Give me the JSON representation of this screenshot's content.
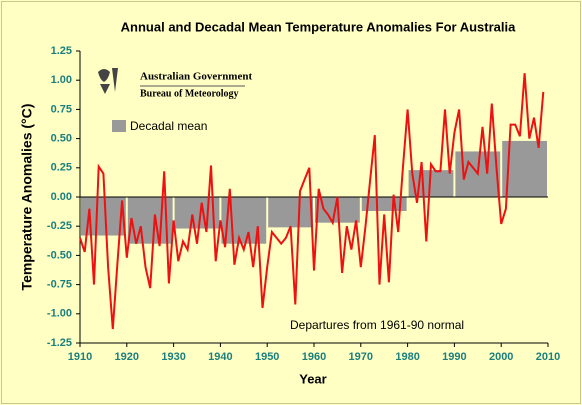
{
  "chart_data": {
    "type": "line",
    "title": "Annual and Decadal Mean Temperature Anomalies For Australia",
    "xlabel": "Year",
    "ylabel": "Temperature Anomalies (°C)",
    "annotation": "Departures from 1961-90 normal",
    "logo_text": [
      "Australian Government",
      "Bureau of Meteorology"
    ],
    "xlim": [
      1910,
      2010
    ],
    "xticks": [
      1910,
      1920,
      1930,
      1940,
      1950,
      1960,
      1970,
      1980,
      1990,
      2000,
      2010
    ],
    "ylim": [
      -1.25,
      1.25
    ],
    "yticks": [
      -1.25,
      {
        "value": -1,
        "label": "-1.00"
      },
      -0.75,
      {
        "value": -0.5,
        "label": "-0.50"
      },
      -0.25,
      {
        "value": 0,
        "label": "0.00"
      },
      0.25,
      {
        "value": 0.5,
        "label": "0.50"
      },
      0.75,
      {
        "value": 1,
        "label": "1.00"
      },
      1.25
    ],
    "bars": {
      "name": "Decadal mean",
      "color": "#999999",
      "x": [
        1910,
        1920,
        1930,
        1940,
        1950,
        1960,
        1970,
        1980,
        1990,
        2000
      ],
      "values": [
        -0.33,
        -0.4,
        -0.27,
        -0.4,
        -0.26,
        -0.22,
        -0.12,
        0.23,
        0.39,
        0.48
      ]
    },
    "line": {
      "color": "#ee1111",
      "x": [
        1910,
        1911,
        1912,
        1913,
        1914,
        1915,
        1916,
        1917,
        1918,
        1919,
        1920,
        1921,
        1922,
        1923,
        1924,
        1925,
        1926,
        1927,
        1928,
        1929,
        1930,
        1931,
        1932,
        1933,
        1934,
        1935,
        1936,
        1937,
        1938,
        1939,
        1940,
        1941,
        1942,
        1943,
        1944,
        1945,
        1946,
        1947,
        1948,
        1949,
        1950,
        1951,
        1952,
        1953,
        1954,
        1955,
        1956,
        1957,
        1958,
        1959,
        1960,
        1961,
        1962,
        1963,
        1964,
        1965,
        1966,
        1967,
        1968,
        1969,
        1970,
        1971,
        1972,
        1973,
        1974,
        1975,
        1976,
        1977,
        1978,
        1979,
        1980,
        1981,
        1982,
        1983,
        1984,
        1985,
        1986,
        1987,
        1988,
        1989,
        1990,
        1991,
        1992,
        1993,
        1994,
        1995,
        1996,
        1997,
        1998,
        1999,
        2000,
        2001,
        2002,
        2003,
        2004,
        2005,
        2006,
        2007,
        2008,
        2009
      ],
      "values": [
        -0.35,
        -0.47,
        -0.1,
        -0.75,
        0.26,
        0.2,
        -0.6,
        -1.13,
        -0.57,
        -0.03,
        -0.52,
        -0.18,
        -0.4,
        -0.25,
        -0.6,
        -0.78,
        -0.15,
        -0.42,
        0.22,
        -0.74,
        -0.2,
        -0.55,
        -0.38,
        -0.45,
        -0.15,
        -0.4,
        -0.05,
        -0.3,
        0.27,
        -0.55,
        -0.2,
        -0.43,
        0.07,
        -0.58,
        -0.35,
        -0.45,
        -0.3,
        -0.6,
        -0.25,
        -0.95,
        -0.6,
        -0.3,
        -0.35,
        -0.4,
        -0.35,
        -0.25,
        -0.92,
        0.05,
        0.15,
        0.25,
        -0.63,
        0.07,
        -0.1,
        -0.15,
        -0.22,
        0.0,
        -0.65,
        -0.25,
        -0.45,
        -0.2,
        -0.6,
        -0.25,
        0.15,
        0.53,
        -0.75,
        -0.15,
        -0.73,
        0.02,
        -0.3,
        0.25,
        0.75,
        0.2,
        -0.05,
        0.3,
        -0.38,
        0.28,
        0.22,
        0.22,
        0.75,
        0.2,
        0.55,
        0.75,
        0.15,
        0.3,
        0.25,
        0.2,
        0.6,
        0.2,
        0.8,
        0.25,
        -0.23,
        -0.1,
        0.62,
        0.62,
        0.52,
        1.06,
        0.5,
        0.68,
        0.42,
        0.9
      ]
    }
  }
}
